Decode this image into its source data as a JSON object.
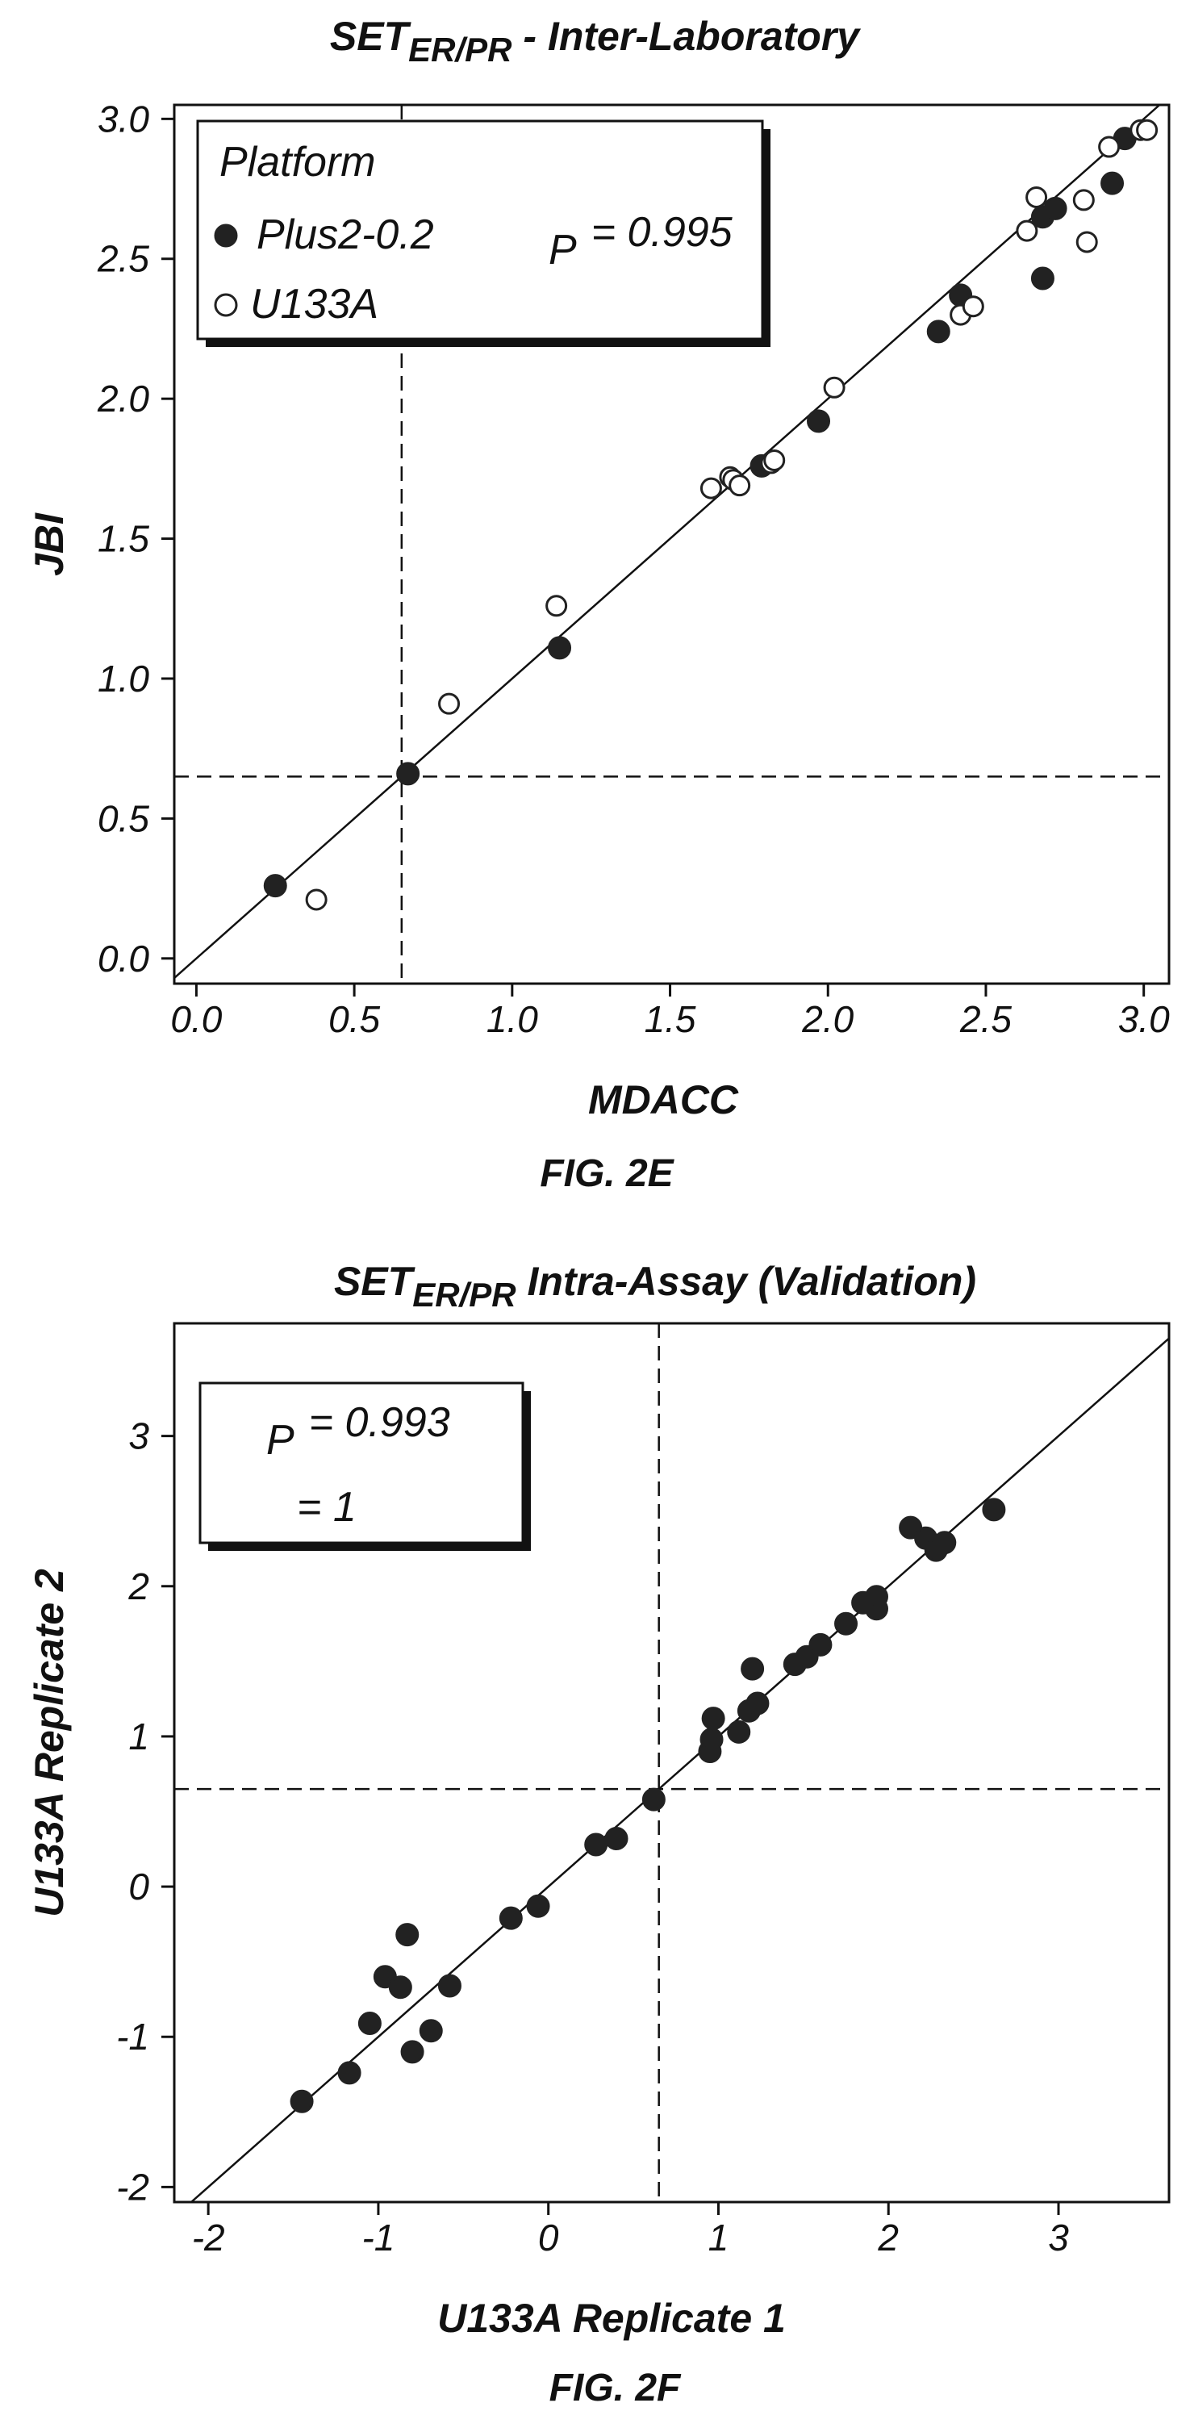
{
  "chart_data": [
    {
      "type": "scatter",
      "title": "SET",
      "title_subscript": "ER/PR",
      "title_suffix": " - Inter-Laboratory",
      "xlabel": "MDACC",
      "ylabel": "JBI",
      "caption": "FIG. 2E",
      "xlim": [
        -0.07,
        3.08
      ],
      "ylim": [
        -0.09,
        3.05
      ],
      "x_ticks": [
        0.0,
        0.5,
        1.0,
        1.5,
        2.0,
        2.5,
        3.0
      ],
      "x_tick_labels": [
        "0.0",
        "0.5",
        "1.0",
        "1.5",
        "2.0",
        "2.5",
        "3.0"
      ],
      "y_ticks": [
        0.0,
        0.5,
        1.0,
        1.5,
        2.0,
        2.5,
        3.0
      ],
      "y_tick_labels": [
        "0.0",
        "0.5",
        "1.0",
        "1.5",
        "2.0",
        "2.5",
        "3.0"
      ],
      "grid": false,
      "identity_line": true,
      "threshold": 0.65,
      "legend": {
        "title": "Platform",
        "position": "top-left",
        "stat_symbol": "P",
        "stat_text": "= 0.995"
      },
      "series": [
        {
          "name": "Plus2-0.2",
          "marker": "filled-circle",
          "points": [
            [
              0.25,
              0.26
            ],
            [
              0.67,
              0.66
            ],
            [
              1.15,
              1.11
            ],
            [
              1.79,
              1.76
            ],
            [
              1.97,
              1.92
            ],
            [
              2.35,
              2.24
            ],
            [
              2.42,
              2.37
            ],
            [
              2.68,
              2.43
            ],
            [
              2.68,
              2.65
            ],
            [
              2.72,
              2.68
            ],
            [
              2.9,
              2.77
            ],
            [
              2.94,
              2.93
            ]
          ]
        },
        {
          "name": "U133A",
          "marker": "open-circle",
          "points": [
            [
              0.38,
              0.21
            ],
            [
              0.8,
              0.91
            ],
            [
              1.14,
              1.26
            ],
            [
              1.63,
              1.68
            ],
            [
              1.69,
              1.72
            ],
            [
              1.7,
              1.71
            ],
            [
              1.72,
              1.69
            ],
            [
              1.82,
              1.77
            ],
            [
              1.83,
              1.78
            ],
            [
              2.02,
              2.04
            ],
            [
              2.42,
              2.3
            ],
            [
              2.46,
              2.33
            ],
            [
              2.63,
              2.6
            ],
            [
              2.66,
              2.72
            ],
            [
              2.81,
              2.71
            ],
            [
              2.82,
              2.56
            ],
            [
              2.89,
              2.9
            ],
            [
              2.99,
              2.96
            ],
            [
              3.01,
              2.96
            ]
          ]
        }
      ]
    },
    {
      "type": "scatter",
      "title": "SET",
      "title_subscript": "ER/PR",
      "title_suffix": " Intra-Assay (Validation)",
      "xlabel": "U133A Replicate 1",
      "ylabel": "U133A Replicate 2",
      "caption": "FIG. 2F",
      "xlim": [
        -2.2,
        3.65
      ],
      "ylim": [
        -2.1,
        3.75
      ],
      "x_ticks": [
        -2,
        -1,
        0,
        1,
        2,
        3
      ],
      "x_tick_labels": [
        "-2",
        "-1",
        "0",
        "1",
        "2",
        "3"
      ],
      "y_ticks": [
        -2,
        -1,
        0,
        1,
        2,
        3
      ],
      "y_tick_labels": [
        "-2",
        "-1",
        "0",
        "1",
        "2",
        "3"
      ],
      "grid": false,
      "identity_line": true,
      "threshold": 0.65,
      "legend": {
        "position": "top-left",
        "stat_symbol": "P",
        "stat_text": "= 0.993",
        "second_line": "= 1"
      },
      "series": [
        {
          "name": "",
          "marker": "filled-circle",
          "points": [
            [
              -1.45,
              -1.43
            ],
            [
              -1.17,
              -1.24
            ],
            [
              -1.05,
              -0.91
            ],
            [
              -0.96,
              -0.6
            ],
            [
              -0.87,
              -0.67
            ],
            [
              -0.83,
              -0.32
            ],
            [
              -0.8,
              -1.1
            ],
            [
              -0.69,
              -0.96
            ],
            [
              -0.58,
              -0.66
            ],
            [
              -0.22,
              -0.21
            ],
            [
              -0.06,
              -0.13
            ],
            [
              0.28,
              0.28
            ],
            [
              0.4,
              0.32
            ],
            [
              0.62,
              0.58
            ],
            [
              0.95,
              0.9
            ],
            [
              0.96,
              0.98
            ],
            [
              0.97,
              1.12
            ],
            [
              1.12,
              1.03
            ],
            [
              1.18,
              1.17
            ],
            [
              1.2,
              1.45
            ],
            [
              1.23,
              1.22
            ],
            [
              1.45,
              1.48
            ],
            [
              1.52,
              1.53
            ],
            [
              1.6,
              1.61
            ],
            [
              1.75,
              1.75
            ],
            [
              1.85,
              1.89
            ],
            [
              1.93,
              1.85
            ],
            [
              1.93,
              1.93
            ],
            [
              2.13,
              2.39
            ],
            [
              2.22,
              2.32
            ],
            [
              2.28,
              2.24
            ],
            [
              2.33,
              2.29
            ],
            [
              2.62,
              2.51
            ]
          ]
        }
      ]
    }
  ]
}
